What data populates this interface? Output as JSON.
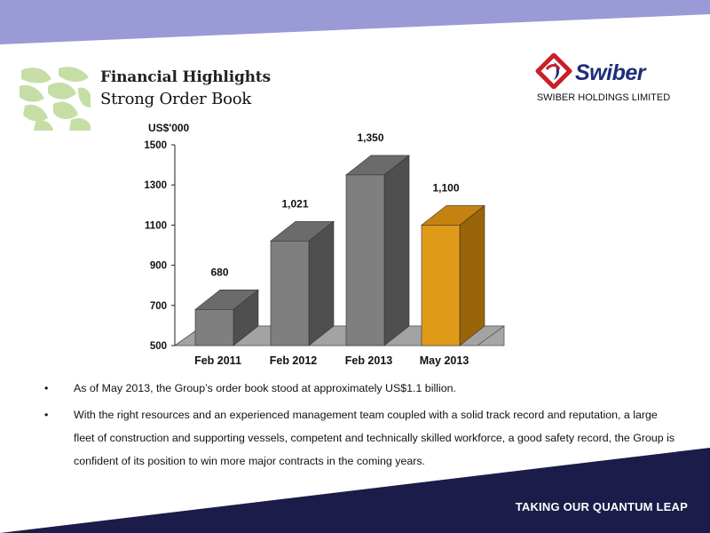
{
  "header": {
    "title": "Financial Highlights",
    "subtitle": "Strong Order Book",
    "brand": "Swiber",
    "company": "SWIBER HOLDINGS LIMITED"
  },
  "colors": {
    "top_band": "#9a9ad6",
    "bottom_band": "#1c1c4a",
    "bar_gray": "#7f7f7f",
    "bar_orange": "#e09a1a",
    "logo_green": "#c6dea6",
    "brand_red": "#c8202a",
    "brand_navy": "#1f2e7a"
  },
  "icons": [
    "leaf-pattern-icon",
    "swiber-logo-icon"
  ],
  "chart_data": {
    "type": "bar",
    "three_d": true,
    "ylabel": "US$'000",
    "categories": [
      "Feb 2011",
      "Feb 2012",
      "Feb 2013",
      "May 2013"
    ],
    "values": [
      680,
      1021,
      1350,
      1100
    ],
    "labels": [
      "680",
      "1,021",
      "1,350",
      "1,100"
    ],
    "ylim": [
      500,
      1500
    ],
    "yticks": [
      "500",
      "700",
      "900",
      "1100",
      "1300",
      "1500"
    ],
    "highlight_index": 3,
    "grid": false
  },
  "bullets": [
    "As of May 2013, the Group’s order book stood at approximately US$1.1 billion.",
    "With the right resources and an experienced management team coupled with a solid track record and reputation, a large fleet of construction and supporting vessels, competent and technically skilled workforce, a good safety record, the Group is confident of its position to win more major contracts  in the coming years."
  ],
  "footer": {
    "tagline": "TAKING OUR QUANTUM LEAP"
  }
}
